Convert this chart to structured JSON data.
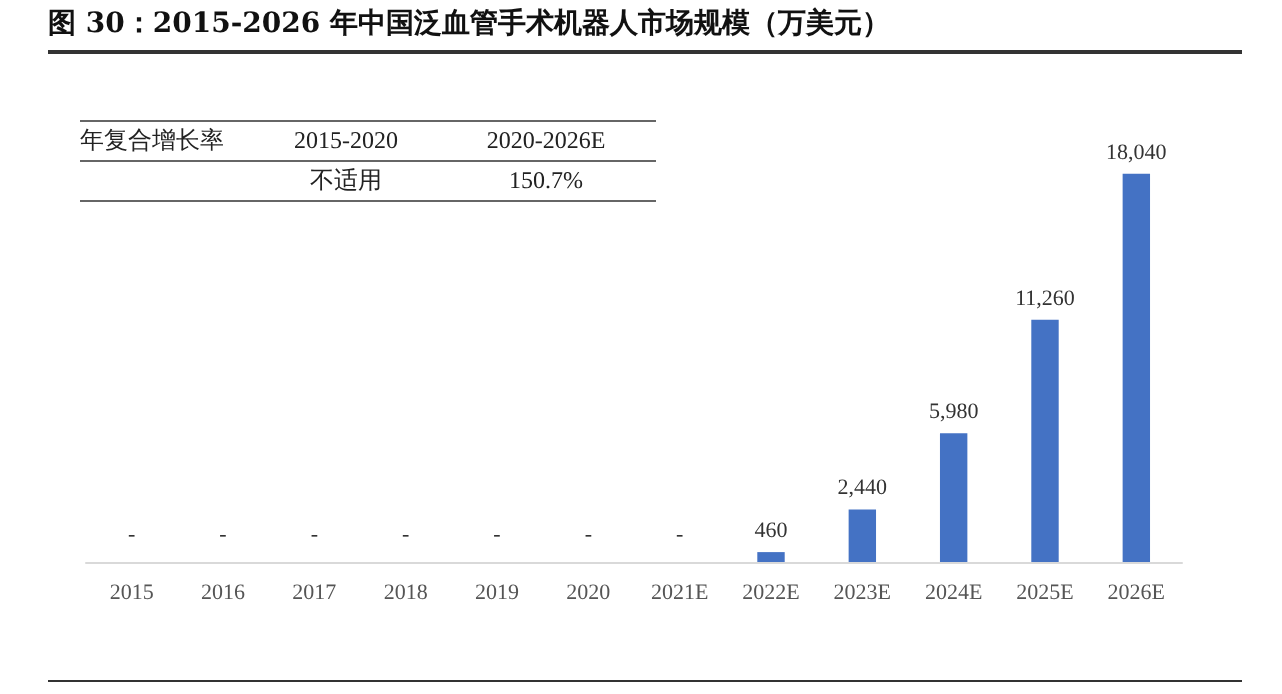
{
  "chart_data": {
    "type": "bar",
    "title": "图 30：2015-2026 年中国泛血管手术机器人市场规模（万美元）",
    "categories": [
      "2015",
      "2016",
      "2017",
      "2018",
      "2019",
      "2020",
      "2021E",
      "2022E",
      "2023E",
      "2024E",
      "2025E",
      "2026E"
    ],
    "values": [
      null,
      null,
      null,
      null,
      null,
      null,
      null,
      460,
      2440,
      5980,
      11260,
      18040
    ],
    "value_labels": [
      "-",
      "-",
      "-",
      "-",
      "-",
      "-",
      "-",
      "460",
      "2,440",
      "5,980",
      "11,260",
      "18,040"
    ],
    "color": "#4472c4",
    "annotations": [
      "年复合增长率",
      "2015-2020",
      "2020-2026E",
      "不适用",
      "150.7%"
    ],
    "tick_labels": "x"
  }
}
